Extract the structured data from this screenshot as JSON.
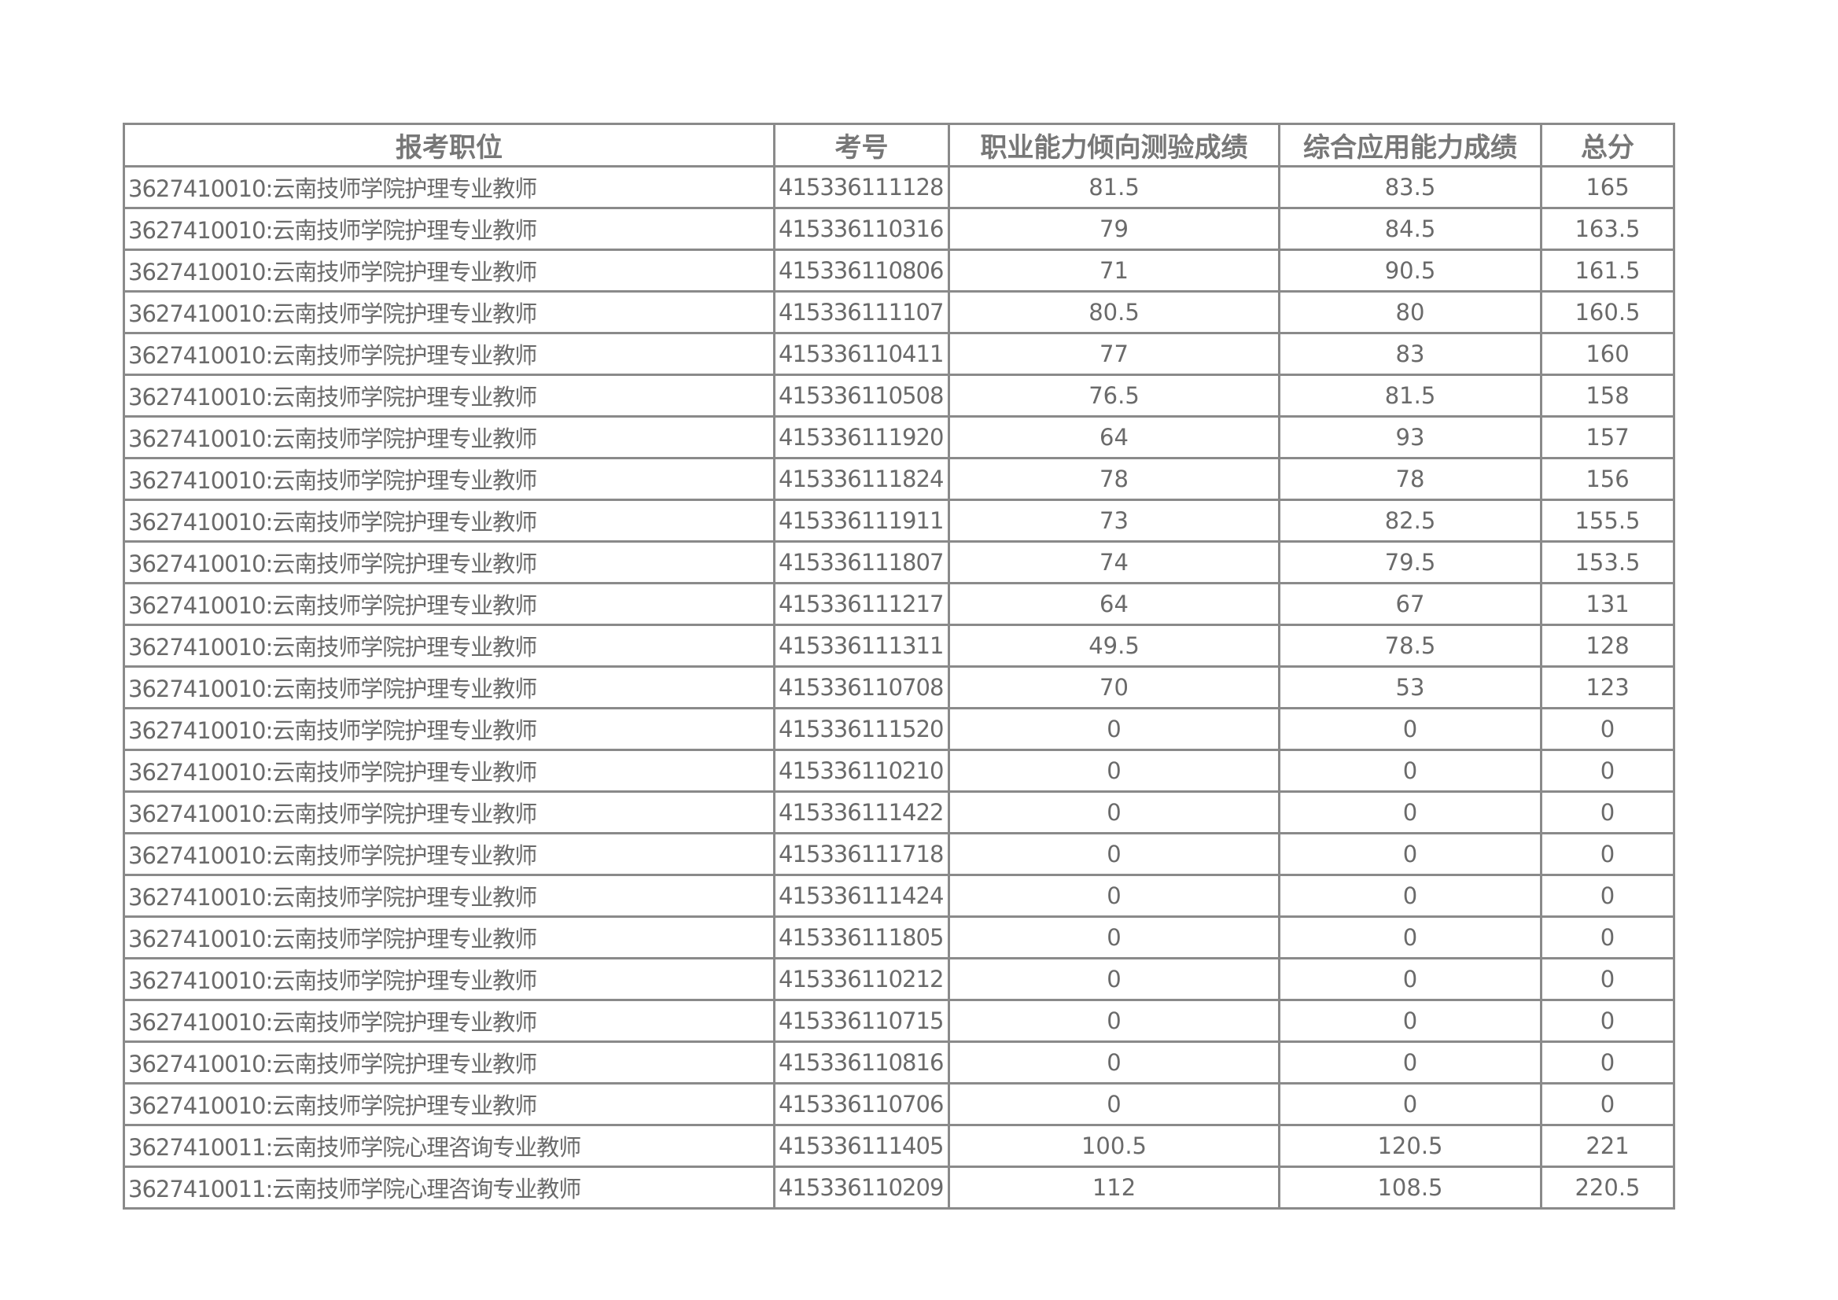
{
  "table": {
    "headers": [
      "报考职位",
      "考号",
      "职业能力倾向测验成绩",
      "综合应用能力成绩",
      "总分"
    ],
    "rows": [
      [
        "3627410010:云南技师学院护理专业教师",
        "415336111128",
        "81.5",
        "83.5",
        "165"
      ],
      [
        "3627410010:云南技师学院护理专业教师",
        "415336110316",
        "79",
        "84.5",
        "163.5"
      ],
      [
        "3627410010:云南技师学院护理专业教师",
        "415336110806",
        "71",
        "90.5",
        "161.5"
      ],
      [
        "3627410010:云南技师学院护理专业教师",
        "415336111107",
        "80.5",
        "80",
        "160.5"
      ],
      [
        "3627410010:云南技师学院护理专业教师",
        "415336110411",
        "77",
        "83",
        "160"
      ],
      [
        "3627410010:云南技师学院护理专业教师",
        "415336110508",
        "76.5",
        "81.5",
        "158"
      ],
      [
        "3627410010:云南技师学院护理专业教师",
        "415336111920",
        "64",
        "93",
        "157"
      ],
      [
        "3627410010:云南技师学院护理专业教师",
        "415336111824",
        "78",
        "78",
        "156"
      ],
      [
        "3627410010:云南技师学院护理专业教师",
        "415336111911",
        "73",
        "82.5",
        "155.5"
      ],
      [
        "3627410010:云南技师学院护理专业教师",
        "415336111807",
        "74",
        "79.5",
        "153.5"
      ],
      [
        "3627410010:云南技师学院护理专业教师",
        "415336111217",
        "64",
        "67",
        "131"
      ],
      [
        "3627410010:云南技师学院护理专业教师",
        "415336111311",
        "49.5",
        "78.5",
        "128"
      ],
      [
        "3627410010:云南技师学院护理专业教师",
        "415336110708",
        "70",
        "53",
        "123"
      ],
      [
        "3627410010:云南技师学院护理专业教师",
        "415336111520",
        "0",
        "0",
        "0"
      ],
      [
        "3627410010:云南技师学院护理专业教师",
        "415336110210",
        "0",
        "0",
        "0"
      ],
      [
        "3627410010:云南技师学院护理专业教师",
        "415336111422",
        "0",
        "0",
        "0"
      ],
      [
        "3627410010:云南技师学院护理专业教师",
        "415336111718",
        "0",
        "0",
        "0"
      ],
      [
        "3627410010:云南技师学院护理专业教师",
        "415336111424",
        "0",
        "0",
        "0"
      ],
      [
        "3627410010:云南技师学院护理专业教师",
        "415336111805",
        "0",
        "0",
        "0"
      ],
      [
        "3627410010:云南技师学院护理专业教师",
        "415336110212",
        "0",
        "0",
        "0"
      ],
      [
        "3627410010:云南技师学院护理专业教师",
        "415336110715",
        "0",
        "0",
        "0"
      ],
      [
        "3627410010:云南技师学院护理专业教师",
        "415336110816",
        "0",
        "0",
        "0"
      ],
      [
        "3627410010:云南技师学院护理专业教师",
        "415336110706",
        "0",
        "0",
        "0"
      ],
      [
        "3627410011:云南技师学院心理咨询专业教师",
        "415336111405",
        "100.5",
        "120.5",
        "221"
      ],
      [
        "3627410011:云南技师学院心理咨询专业教师",
        "415336110209",
        "112",
        "108.5",
        "220.5"
      ]
    ]
  }
}
